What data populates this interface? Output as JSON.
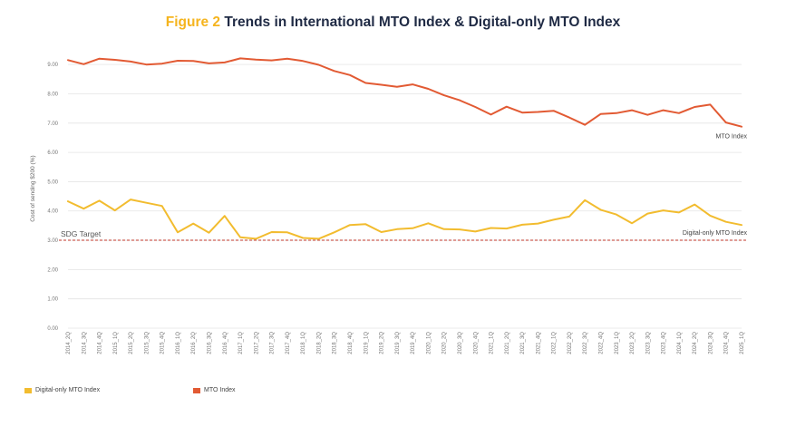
{
  "header": {
    "figure_label": "Figure 2",
    "title": "Trends in International MTO Index & Digital-only MTO Index"
  },
  "chart_data": {
    "type": "line",
    "title": "Figure 2 Trends in International MTO Index & Digital-only MTO Index",
    "xlabel": "",
    "ylabel": "Cost of sending $200 (%)",
    "ylim": [
      0,
      9.5
    ],
    "yticks": [
      "0.00",
      "1.00",
      "2.00",
      "3.00",
      "4.00",
      "5.00",
      "6.00",
      "7.00",
      "8.00",
      "9.00"
    ],
    "categories": [
      "2014_2Q",
      "2014_3Q",
      "2014_4Q",
      "2015_1Q",
      "2015_2Q",
      "2015_3Q",
      "2015_4Q",
      "2016_1Q",
      "2016_2Q",
      "2016_3Q",
      "2016_4Q",
      "2017_1Q",
      "2017_2Q",
      "2017_3Q",
      "2017_4Q",
      "2018_1Q",
      "2018_2Q",
      "2018_3Q",
      "2018_4Q",
      "2019_1Q",
      "2019_2Q",
      "2019_3Q",
      "2019_4Q",
      "2020_1Q",
      "2020_2Q",
      "2020_3Q",
      "2020_4Q",
      "2021_1Q",
      "2021_2Q",
      "2021_3Q",
      "2021_4Q",
      "2022_1Q",
      "2022_2Q",
      "2022_3Q",
      "2022_4Q",
      "2023_1Q",
      "2023_2Q",
      "2023_3Q",
      "2023_4Q",
      "2024_1Q",
      "2024_2Q",
      "2024_3Q",
      "2024_4Q",
      "2025_1Q"
    ],
    "series": [
      {
        "name": "Digital-only MTO Index",
        "color": "#f2bc2f",
        "values": [
          4.33,
          4.08,
          4.35,
          4.02,
          4.39,
          4.28,
          4.17,
          3.27,
          3.57,
          3.26,
          3.83,
          3.1,
          3.05,
          3.28,
          3.27,
          3.08,
          3.05,
          3.27,
          3.52,
          3.55,
          3.28,
          3.38,
          3.41,
          3.58,
          3.38,
          3.37,
          3.3,
          3.42,
          3.4,
          3.53,
          3.57,
          3.7,
          3.81,
          4.37,
          4.04,
          3.88,
          3.58,
          3.91,
          4.02,
          3.95,
          4.22,
          3.84,
          3.63,
          3.52
        ],
        "label": "Digital-only MTO Index"
      },
      {
        "name": "MTO Index",
        "color": "#e25a33",
        "values": [
          9.15,
          9.01,
          9.2,
          9.16,
          9.1,
          9.0,
          9.03,
          9.13,
          9.12,
          9.04,
          9.07,
          9.21,
          9.17,
          9.14,
          9.2,
          9.12,
          8.99,
          8.78,
          8.64,
          8.37,
          8.31,
          8.24,
          8.32,
          8.17,
          7.95,
          7.78,
          7.55,
          7.29,
          7.56,
          7.36,
          7.38,
          7.42,
          7.19,
          6.94,
          7.31,
          7.34,
          7.44,
          7.28,
          7.44,
          7.34,
          7.55,
          7.63,
          7.02,
          6.88
        ],
        "label": "MTO Index"
      }
    ],
    "reference_line": {
      "label": "SDG Target",
      "value": 3.0,
      "color": "#c0392b"
    },
    "legend": {
      "position": "bottom-left",
      "items": [
        "Digital-only MTO Index",
        "MTO Index"
      ]
    }
  }
}
